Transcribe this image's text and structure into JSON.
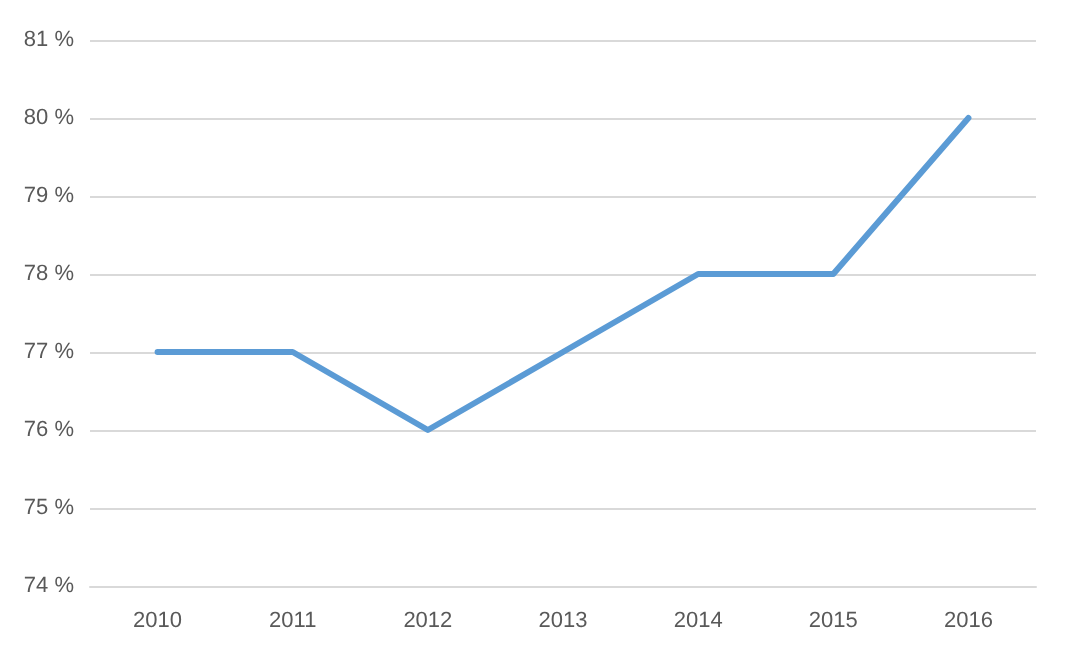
{
  "chart_data": {
    "type": "line",
    "categories": [
      "2010",
      "2011",
      "2012",
      "2013",
      "2014",
      "2015",
      "2016"
    ],
    "series": [
      {
        "color": "#5b9bd5",
        "values": [
          77,
          77,
          76,
          77,
          78,
          78,
          80
        ]
      }
    ],
    "ylim": [
      74,
      81
    ],
    "yticks": [
      {
        "value": 74,
        "label": "74 %"
      },
      {
        "value": 75,
        "label": "75 %"
      },
      {
        "value": 76,
        "label": "76 %"
      },
      {
        "value": 77,
        "label": "77 %"
      },
      {
        "value": 78,
        "label": "78 %"
      },
      {
        "value": 79,
        "label": "79 %"
      },
      {
        "value": 80,
        "label": "80 %"
      },
      {
        "value": 81,
        "label": "81 %"
      }
    ],
    "grid": "y",
    "marker": "none",
    "line_style": "solid"
  }
}
